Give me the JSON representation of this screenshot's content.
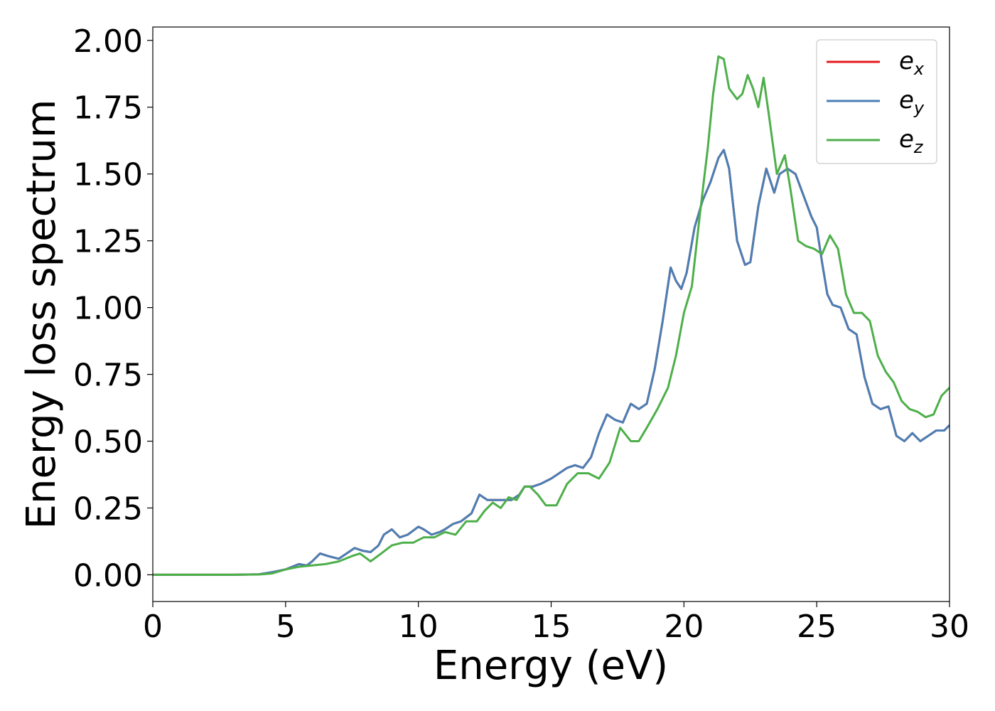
{
  "chart_data": {
    "type": "line",
    "xlabel": "Energy (eV)",
    "ylabel": "Energy loss spectrum",
    "xlim": [
      0,
      30
    ],
    "ylim": [
      -0.1,
      2.05
    ],
    "x_ticks": [
      "0",
      "5",
      "10",
      "15",
      "20",
      "25",
      "30"
    ],
    "y_ticks": [
      "0.00",
      "0.25",
      "0.50",
      "0.75",
      "1.00",
      "1.25",
      "1.50",
      "1.75",
      "2.00"
    ],
    "grid": false,
    "legend_position": "top-right",
    "series": [
      {
        "name": "e_x",
        "label_main": "e",
        "label_sub": "x",
        "color": "#e41a1c",
        "x": [
          0,
          1,
          2,
          3,
          4,
          4.5,
          5,
          5.5,
          5.8,
          6,
          6.3,
          6.6,
          7,
          7.3,
          7.6,
          7.9,
          8.2,
          8.5,
          8.7,
          9,
          9.3,
          9.6,
          10,
          10.2,
          10.5,
          10.8,
          11,
          11.3,
          11.6,
          12,
          12.3,
          12.6,
          12.9,
          13.2,
          13.5,
          13.8,
          14,
          14.3,
          14.6,
          15,
          15.3,
          15.6,
          15.9,
          16.2,
          16.5,
          16.8,
          17.1,
          17.4,
          17.7,
          18,
          18.3,
          18.6,
          18.9,
          19.2,
          19.5,
          19.7,
          19.9,
          20.1,
          20.4,
          20.7,
          21,
          21.3,
          21.5,
          21.7,
          22,
          22.3,
          22.5,
          22.8,
          23.1,
          23.4,
          23.6,
          23.9,
          24.2,
          24.5,
          24.8,
          25,
          25.2,
          25.4,
          25.6,
          25.9,
          26.2,
          26.5,
          26.8,
          27.1,
          27.4,
          27.7,
          28,
          28.3,
          28.6,
          28.9,
          29.2,
          29.5,
          29.8,
          30
        ],
        "values": [
          0,
          0,
          0,
          0,
          0.002,
          0.01,
          0.02,
          0.04,
          0.035,
          0.05,
          0.08,
          0.07,
          0.06,
          0.08,
          0.1,
          0.09,
          0.085,
          0.11,
          0.15,
          0.17,
          0.14,
          0.15,
          0.18,
          0.17,
          0.15,
          0.16,
          0.17,
          0.19,
          0.2,
          0.23,
          0.3,
          0.28,
          0.28,
          0.28,
          0.28,
          0.3,
          0.33,
          0.33,
          0.34,
          0.36,
          0.38,
          0.4,
          0.41,
          0.4,
          0.44,
          0.53,
          0.6,
          0.58,
          0.57,
          0.64,
          0.62,
          0.64,
          0.77,
          0.95,
          1.15,
          1.1,
          1.07,
          1.13,
          1.3,
          1.4,
          1.47,
          1.56,
          1.59,
          1.52,
          1.25,
          1.16,
          1.17,
          1.38,
          1.52,
          1.43,
          1.5,
          1.52,
          1.5,
          1.42,
          1.34,
          1.3,
          1.17,
          1.05,
          1.01,
          1.0,
          0.92,
          0.9,
          0.74,
          0.64,
          0.62,
          0.63,
          0.52,
          0.5,
          0.53,
          0.5,
          0.52,
          0.54,
          0.54,
          0.56
        ]
      },
      {
        "name": "e_y",
        "label_main": "e",
        "label_sub": "y",
        "color": "#4a7fb5",
        "x": [
          0,
          1,
          2,
          3,
          4,
          4.5,
          5,
          5.5,
          5.8,
          6,
          6.3,
          6.6,
          7,
          7.3,
          7.6,
          7.9,
          8.2,
          8.5,
          8.7,
          9,
          9.3,
          9.6,
          10,
          10.2,
          10.5,
          10.8,
          11,
          11.3,
          11.6,
          12,
          12.3,
          12.6,
          12.9,
          13.2,
          13.5,
          13.8,
          14,
          14.3,
          14.6,
          15,
          15.3,
          15.6,
          15.9,
          16.2,
          16.5,
          16.8,
          17.1,
          17.4,
          17.7,
          18,
          18.3,
          18.6,
          18.9,
          19.2,
          19.5,
          19.7,
          19.9,
          20.1,
          20.4,
          20.7,
          21,
          21.3,
          21.5,
          21.7,
          22,
          22.3,
          22.5,
          22.8,
          23.1,
          23.4,
          23.6,
          23.9,
          24.2,
          24.5,
          24.8,
          25,
          25.2,
          25.4,
          25.6,
          25.9,
          26.2,
          26.5,
          26.8,
          27.1,
          27.4,
          27.7,
          28,
          28.3,
          28.6,
          28.9,
          29.2,
          29.5,
          29.8,
          30
        ],
        "values": [
          0,
          0,
          0,
          0,
          0.002,
          0.01,
          0.02,
          0.04,
          0.035,
          0.05,
          0.08,
          0.07,
          0.06,
          0.08,
          0.1,
          0.09,
          0.085,
          0.11,
          0.15,
          0.17,
          0.14,
          0.15,
          0.18,
          0.17,
          0.15,
          0.16,
          0.17,
          0.19,
          0.2,
          0.23,
          0.3,
          0.28,
          0.28,
          0.28,
          0.28,
          0.3,
          0.33,
          0.33,
          0.34,
          0.36,
          0.38,
          0.4,
          0.41,
          0.4,
          0.44,
          0.53,
          0.6,
          0.58,
          0.57,
          0.64,
          0.62,
          0.64,
          0.77,
          0.95,
          1.15,
          1.1,
          1.07,
          1.13,
          1.3,
          1.4,
          1.47,
          1.56,
          1.59,
          1.52,
          1.25,
          1.16,
          1.17,
          1.38,
          1.52,
          1.43,
          1.5,
          1.52,
          1.5,
          1.42,
          1.34,
          1.3,
          1.17,
          1.05,
          1.01,
          1.0,
          0.92,
          0.9,
          0.74,
          0.64,
          0.62,
          0.63,
          0.52,
          0.5,
          0.53,
          0.5,
          0.52,
          0.54,
          0.54,
          0.56
        ]
      },
      {
        "name": "e_z",
        "label_main": "e",
        "label_sub": "z",
        "color": "#4daf4a",
        "x": [
          0,
          1,
          2,
          3,
          4,
          4.5,
          5,
          5.5,
          6,
          6.5,
          7,
          7.5,
          7.8,
          8.2,
          8.6,
          9,
          9.4,
          9.8,
          10.2,
          10.6,
          11,
          11.4,
          11.8,
          12.2,
          12.5,
          12.8,
          13.1,
          13.4,
          13.7,
          14,
          14.2,
          14.5,
          14.8,
          15.2,
          15.6,
          16,
          16.4,
          16.8,
          17.2,
          17.6,
          18,
          18.3,
          18.6,
          19,
          19.4,
          19.7,
          20,
          20.3,
          20.6,
          20.9,
          21.1,
          21.3,
          21.5,
          21.7,
          22,
          22.2,
          22.4,
          22.6,
          22.8,
          23,
          23.2,
          23.5,
          23.8,
          24,
          24.3,
          24.6,
          24.9,
          25.2,
          25.5,
          25.8,
          26.1,
          26.4,
          26.7,
          27,
          27.3,
          27.6,
          27.9,
          28.2,
          28.5,
          28.8,
          29.1,
          29.4,
          29.7,
          30
        ],
        "values": [
          0,
          0,
          0,
          0,
          0.001,
          0.005,
          0.02,
          0.03,
          0.035,
          0.04,
          0.05,
          0.07,
          0.08,
          0.05,
          0.08,
          0.11,
          0.12,
          0.12,
          0.14,
          0.14,
          0.16,
          0.15,
          0.2,
          0.2,
          0.24,
          0.27,
          0.25,
          0.29,
          0.28,
          0.33,
          0.33,
          0.3,
          0.26,
          0.26,
          0.34,
          0.38,
          0.38,
          0.36,
          0.42,
          0.55,
          0.5,
          0.5,
          0.55,
          0.62,
          0.7,
          0.82,
          0.98,
          1.08,
          1.35,
          1.6,
          1.8,
          1.94,
          1.93,
          1.82,
          1.78,
          1.8,
          1.87,
          1.82,
          1.75,
          1.86,
          1.72,
          1.5,
          1.57,
          1.45,
          1.25,
          1.23,
          1.22,
          1.2,
          1.27,
          1.22,
          1.05,
          0.98,
          0.98,
          0.95,
          0.82,
          0.76,
          0.72,
          0.65,
          0.62,
          0.61,
          0.59,
          0.6,
          0.67,
          0.7
        ]
      }
    ]
  }
}
